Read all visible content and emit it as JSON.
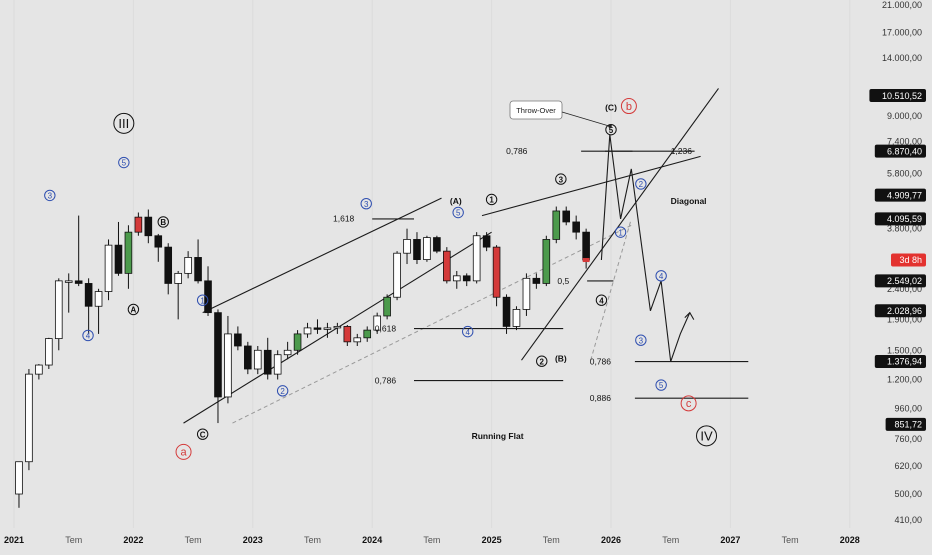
{
  "chart_data": {
    "type": "candlestick",
    "title": "",
    "xlabel": "",
    "ylabel": "",
    "y_scale": "log",
    "ylim": [
      360,
      21000
    ],
    "y_ticks": [
      {
        "value": 21000,
        "label": "21.000,00"
      },
      {
        "value": 17000,
        "label": "17.000,00"
      },
      {
        "value": 14000,
        "label": "14.000,00"
      },
      {
        "value": 9000,
        "label": "9.000,00"
      },
      {
        "value": 7400,
        "label": "7.400,00"
      },
      {
        "value": 5800,
        "label": "5.800,00"
      },
      {
        "value": 3800,
        "label": "3.800,00"
      },
      {
        "value": 2400,
        "label": "2.400,00"
      },
      {
        "value": 1900,
        "label": "1.900,00"
      },
      {
        "value": 1500,
        "label": "1.500,00"
      },
      {
        "value": 1200,
        "label": "1.200,00"
      },
      {
        "value": 960,
        "label": "960,00"
      },
      {
        "value": 760,
        "label": "760,00"
      },
      {
        "value": 620,
        "label": "620,00"
      },
      {
        "value": 500,
        "label": "500,00"
      },
      {
        "value": 410,
        "label": "410,00"
      }
    ],
    "price_tags": [
      {
        "value": 10510.52,
        "label": "10.510,52",
        "style": "dark"
      },
      {
        "value": 6870.4,
        "label": "6.870,40",
        "style": "dark"
      },
      {
        "value": 4909.77,
        "label": "4.909,77",
        "style": "dark"
      },
      {
        "value": 4095.59,
        "label": "4.095,59",
        "style": "dark"
      },
      {
        "value": 2990,
        "label": "3d 8h",
        "style": "red"
      },
      {
        "value": 2549.02,
        "label": "2.549,02",
        "style": "dark"
      },
      {
        "value": 2028.96,
        "label": "2.028,96",
        "style": "dark"
      },
      {
        "value": 1376.94,
        "label": "1.376,94",
        "style": "dark"
      },
      {
        "value": 851.72,
        "label": "851,72",
        "style": "dark"
      }
    ],
    "x_ticks": [
      {
        "value": 2021.0,
        "label": "2021",
        "bold": true
      },
      {
        "value": 2021.5,
        "label": "Tem",
        "bold": false
      },
      {
        "value": 2022.0,
        "label": "2022",
        "bold": true
      },
      {
        "value": 2022.5,
        "label": "Tem",
        "bold": false
      },
      {
        "value": 2023.0,
        "label": "2023",
        "bold": true
      },
      {
        "value": 2023.5,
        "label": "Tem",
        "bold": false
      },
      {
        "value": 2024.0,
        "label": "2024",
        "bold": true
      },
      {
        "value": 2024.5,
        "label": "Tem",
        "bold": false
      },
      {
        "value": 2025.0,
        "label": "2025",
        "bold": true
      },
      {
        "value": 2025.5,
        "label": "Tem",
        "bold": false
      },
      {
        "value": 2026.0,
        "label": "2026",
        "bold": true
      },
      {
        "value": 2026.5,
        "label": "Tem",
        "bold": false
      },
      {
        "value": 2027.0,
        "label": "2027",
        "bold": true
      },
      {
        "value": 2027.5,
        "label": "Tem",
        "bold": false
      },
      {
        "value": 2028.0,
        "label": "2028",
        "bold": true
      }
    ],
    "candles": [
      {
        "date": "2021-01",
        "open": 500,
        "high": 640,
        "low": 450,
        "close": 640
      },
      {
        "date": "2021-02",
        "open": 640,
        "high": 1300,
        "low": 600,
        "close": 1250
      },
      {
        "date": "2021-03",
        "open": 1250,
        "high": 1350,
        "low": 1200,
        "close": 1340
      },
      {
        "date": "2021-04",
        "open": 1340,
        "high": 1650,
        "low": 1300,
        "close": 1640
      },
      {
        "date": "2021-05",
        "open": 1640,
        "high": 2600,
        "low": 1500,
        "close": 2550
      },
      {
        "date": "2021-06",
        "open": 2550,
        "high": 2700,
        "low": 2000,
        "close": 2550
      },
      {
        "date": "2021-07",
        "open": 2550,
        "high": 4200,
        "low": 2450,
        "close": 2500
      },
      {
        "date": "2021-08",
        "open": 2500,
        "high": 2600,
        "low": 1700,
        "close": 2100
      },
      {
        "date": "2021-09",
        "open": 2100,
        "high": 2400,
        "low": 1700,
        "close": 2350
      },
      {
        "date": "2021-10",
        "open": 2350,
        "high": 3500,
        "low": 2200,
        "close": 3350
      },
      {
        "date": "2021-11",
        "open": 3350,
        "high": 4000,
        "low": 2650,
        "close": 2700
      },
      {
        "date": "2021-12",
        "open": 2700,
        "high": 3900,
        "low": 2400,
        "close": 3700
      },
      {
        "date": "2022-01",
        "open": 3700,
        "high": 4300,
        "low": 3600,
        "close": 4150
      },
      {
        "date": "2022-02",
        "open": 4150,
        "high": 4400,
        "low": 3400,
        "close": 3600
      },
      {
        "date": "2022-03",
        "open": 3600,
        "high": 3650,
        "low": 2950,
        "close": 3300
      },
      {
        "date": "2022-04",
        "open": 3300,
        "high": 3400,
        "low": 2300,
        "close": 2500
      },
      {
        "date": "2022-05",
        "open": 2500,
        "high": 2750,
        "low": 1900,
        "close": 2700
      },
      {
        "date": "2022-06",
        "open": 2700,
        "high": 3200,
        "low": 2600,
        "close": 3050
      },
      {
        "date": "2022-07",
        "open": 3050,
        "high": 3500,
        "low": 2500,
        "close": 2550
      },
      {
        "date": "2022-08",
        "open": 2550,
        "high": 2850,
        "low": 1950,
        "close": 2000
      },
      {
        "date": "2022-09",
        "open": 2000,
        "high": 2050,
        "low": 860,
        "close": 1050
      },
      {
        "date": "2022-10",
        "open": 1050,
        "high": 1950,
        "low": 1000,
        "close": 1700
      },
      {
        "date": "2022-11",
        "open": 1700,
        "high": 1800,
        "low": 1500,
        "close": 1550
      },
      {
        "date": "2022-12",
        "open": 1550,
        "high": 1600,
        "low": 1250,
        "close": 1300
      },
      {
        "date": "2023-01",
        "open": 1300,
        "high": 1550,
        "low": 1250,
        "close": 1500
      },
      {
        "date": "2023-02",
        "open": 1500,
        "high": 1650,
        "low": 1200,
        "close": 1250
      },
      {
        "date": "2023-03",
        "open": 1250,
        "high": 1500,
        "low": 1200,
        "close": 1450
      },
      {
        "date": "2023-04",
        "open": 1450,
        "high": 1600,
        "low": 1400,
        "close": 1500
      },
      {
        "date": "2023-05",
        "open": 1500,
        "high": 1750,
        "low": 1450,
        "close": 1700
      },
      {
        "date": "2023-06",
        "open": 1700,
        "high": 1850,
        "low": 1650,
        "close": 1780
      },
      {
        "date": "2023-07",
        "open": 1780,
        "high": 1900,
        "low": 1700,
        "close": 1760
      },
      {
        "date": "2023-08",
        "open": 1760,
        "high": 1850,
        "low": 1650,
        "close": 1780
      },
      {
        "date": "2023-09",
        "open": 1780,
        "high": 1850,
        "low": 1700,
        "close": 1800
      },
      {
        "date": "2023-10",
        "open": 1800,
        "high": 1820,
        "low": 1550,
        "close": 1600
      },
      {
        "date": "2023-11",
        "open": 1600,
        "high": 1700,
        "low": 1550,
        "close": 1650
      },
      {
        "date": "2023-12",
        "open": 1650,
        "high": 1800,
        "low": 1600,
        "close": 1750
      },
      {
        "date": "2024-01",
        "open": 1750,
        "high": 2000,
        "low": 1700,
        "close": 1950
      },
      {
        "date": "2024-02",
        "open": 1950,
        "high": 2300,
        "low": 1900,
        "close": 2250
      },
      {
        "date": "2024-03",
        "open": 2250,
        "high": 3200,
        "low": 2200,
        "close": 3150
      },
      {
        "date": "2024-04",
        "open": 3150,
        "high": 3800,
        "low": 2900,
        "close": 3500
      },
      {
        "date": "2024-05",
        "open": 3500,
        "high": 3700,
        "low": 2900,
        "close": 3000
      },
      {
        "date": "2024-06",
        "open": 3000,
        "high": 3600,
        "low": 2950,
        "close": 3550
      },
      {
        "date": "2024-07",
        "open": 3550,
        "high": 3600,
        "low": 3150,
        "close": 3200
      },
      {
        "date": "2024-08",
        "open": 3200,
        "high": 3300,
        "low": 2500,
        "close": 2550
      },
      {
        "date": "2024-09",
        "open": 2550,
        "high": 2750,
        "low": 2400,
        "close": 2650
      },
      {
        "date": "2024-10",
        "open": 2650,
        "high": 2700,
        "low": 2450,
        "close": 2550
      },
      {
        "date": "2024-11",
        "open": 2550,
        "high": 3700,
        "low": 2500,
        "close": 3600
      },
      {
        "date": "2024-12",
        "open": 3600,
        "high": 3700,
        "low": 3200,
        "close": 3300
      },
      {
        "date": "2025-01",
        "open": 3300,
        "high": 3350,
        "low": 2100,
        "close": 2250
      },
      {
        "date": "2025-02",
        "open": 2250,
        "high": 2300,
        "low": 1700,
        "close": 1800
      },
      {
        "date": "2025-03",
        "open": 1800,
        "high": 2100,
        "low": 1750,
        "close": 2050
      },
      {
        "date": "2025-04",
        "open": 2050,
        "high": 2700,
        "low": 1950,
        "close": 2600
      },
      {
        "date": "2025-05",
        "open": 2600,
        "high": 2700,
        "low": 2400,
        "close": 2500
      },
      {
        "date": "2025-06",
        "open": 2500,
        "high": 3600,
        "low": 2450,
        "close": 3500
      },
      {
        "date": "2025-07",
        "open": 3500,
        "high": 4500,
        "low": 3400,
        "close": 4350
      },
      {
        "date": "2025-08",
        "open": 4350,
        "high": 4500,
        "low": 3900,
        "close": 4000
      },
      {
        "date": "2025-09",
        "open": 4000,
        "high": 4200,
        "low": 3500,
        "close": 3700
      },
      {
        "date": "2025-10",
        "open": 3700,
        "high": 3800,
        "low": 2800,
        "close": 2990
      }
    ],
    "colors": {
      "up": "#4c9a4c",
      "down": "#d43a3a",
      "neutral_up": "#ffffff",
      "neutral_down": "#111111"
    }
  },
  "annotations": {
    "text_labels": [
      {
        "text": "(A)",
        "x": 2024.7,
        "y": 4700,
        "bold": true
      },
      {
        "text": "(B)",
        "x": 2025.58,
        "y": 1410,
        "bold": true
      },
      {
        "text": "(C)",
        "x": 2026.0,
        "y": 9600,
        "bold": true
      },
      {
        "text": "Diagonal",
        "x": 2026.65,
        "y": 4700,
        "bold": true
      },
      {
        "text": "Running Flat",
        "x": 2025.05,
        "y": 780,
        "bold": true
      }
    ],
    "throw_over": "Throw-Over",
    "fib_labels": [
      {
        "text": "1,618",
        "x": 2023.85,
        "y": 4100
      },
      {
        "text": "0,786",
        "x": 2025.3,
        "y": 6870
      },
      {
        "text": "1,236",
        "x": 2026.5,
        "y": 6870
      },
      {
        "text": "0,5",
        "x": 2025.65,
        "y": 2549
      },
      {
        "text": "0,618",
        "x": 2024.2,
        "y": 1770
      },
      {
        "text": "0,786",
        "x": 2024.2,
        "y": 1190
      },
      {
        "text": "0,786",
        "x": 2026.0,
        "y": 1375
      },
      {
        "text": "0,886",
        "x": 2026.0,
        "y": 1040
      }
    ],
    "wave_black_small": [
      {
        "label": "A",
        "x": 2022.0,
        "y": 2050
      },
      {
        "label": "B",
        "x": 2022.25,
        "y": 4000
      },
      {
        "label": "C",
        "x": 2022.58,
        "y": 790
      },
      {
        "label": "1",
        "x": 2025.0,
        "y": 4750
      },
      {
        "label": "2",
        "x": 2025.42,
        "y": 1380
      },
      {
        "label": "3",
        "x": 2025.58,
        "y": 5550
      },
      {
        "label": "4",
        "x": 2025.92,
        "y": 2200
      },
      {
        "label": "5",
        "x": 2026.0,
        "y": 8100
      }
    ],
    "wave_blue_small": [
      {
        "label": "3",
        "x": 2021.3,
        "y": 4900
      },
      {
        "label": "4",
        "x": 2021.62,
        "y": 1680
      },
      {
        "label": "5",
        "x": 2021.92,
        "y": 6300
      },
      {
        "label": "1",
        "x": 2022.58,
        "y": 2200
      },
      {
        "label": "2",
        "x": 2023.25,
        "y": 1100
      },
      {
        "label": "3",
        "x": 2023.95,
        "y": 4600
      },
      {
        "label": "4",
        "x": 2024.8,
        "y": 1730
      },
      {
        "label": "5",
        "x": 2024.72,
        "y": 4300
      },
      {
        "label": "2",
        "x": 2026.25,
        "y": 5350
      },
      {
        "label": "1",
        "x": 2026.08,
        "y": 3700
      },
      {
        "label": "4",
        "x": 2026.42,
        "y": 2650
      },
      {
        "label": "3",
        "x": 2026.25,
        "y": 1620
      },
      {
        "label": "5",
        "x": 2026.42,
        "y": 1150
      }
    ],
    "wave_black_large": [
      {
        "label": "III",
        "x": 2021.92,
        "y": 8500
      },
      {
        "label": "IV",
        "x": 2026.8,
        "y": 780
      }
    ],
    "wave_red": [
      {
        "label": "a",
        "x": 2022.42,
        "y": 690
      },
      {
        "label": "b",
        "x": 2026.15,
        "y": 9700
      },
      {
        "label": "c",
        "x": 2026.65,
        "y": 1000
      }
    ],
    "lines": [
      {
        "kind": "solid",
        "points": [
          [
            2022.42,
            860
          ],
          [
            2025.0,
            3700
          ]
        ]
      },
      {
        "kind": "solid",
        "points": [
          [
            2022.58,
            2000
          ],
          [
            2024.58,
            4800
          ]
        ]
      },
      {
        "kind": "dash",
        "points": [
          [
            2022.83,
            860
          ],
          [
            2026.17,
            3900
          ]
        ]
      },
      {
        "kind": "solid",
        "points": [
          [
            2025.25,
            1390
          ],
          [
            2026.9,
            11100
          ]
        ]
      },
      {
        "kind": "solid",
        "points": [
          [
            2024.92,
            4200
          ],
          [
            2026.75,
            6600
          ]
        ]
      },
      {
        "kind": "dash",
        "points": [
          [
            2025.83,
            1390
          ],
          [
            2026.17,
            4095
          ]
        ]
      },
      {
        "kind": "solid",
        "points": [
          [
            2024.0,
            4095
          ],
          [
            2024.35,
            4095
          ]
        ]
      },
      {
        "kind": "solid",
        "points": [
          [
            2025.95,
            6870
          ],
          [
            2026.7,
            6870
          ]
        ]
      },
      {
        "kind": "solid",
        "points": [
          [
            2025.75,
            6870
          ],
          [
            2026.18,
            6870
          ]
        ]
      },
      {
        "kind": "solid",
        "points": [
          [
            2025.8,
            2549
          ],
          [
            2026.02,
            2549
          ]
        ]
      },
      {
        "kind": "solid",
        "points": [
          [
            2024.35,
            1770
          ],
          [
            2025.6,
            1770
          ]
        ]
      },
      {
        "kind": "solid",
        "points": [
          [
            2024.35,
            1190
          ],
          [
            2025.6,
            1190
          ]
        ]
      },
      {
        "kind": "solid",
        "points": [
          [
            2026.2,
            1376
          ],
          [
            2027.15,
            1376
          ]
        ]
      },
      {
        "kind": "solid",
        "points": [
          [
            2026.2,
            1040
          ],
          [
            2027.15,
            1040
          ]
        ]
      },
      {
        "kind": "solid",
        "points": [
          [
            2025.92,
            2990
          ],
          [
            2025.99,
            7800
          ],
          [
            2026.08,
            4095
          ],
          [
            2026.17,
            6000
          ],
          [
            2026.33,
            2028
          ],
          [
            2026.42,
            2549
          ],
          [
            2026.5,
            1376
          ],
          [
            2026.58,
            1700
          ],
          [
            2026.66,
            2000
          ]
        ]
      }
    ]
  }
}
